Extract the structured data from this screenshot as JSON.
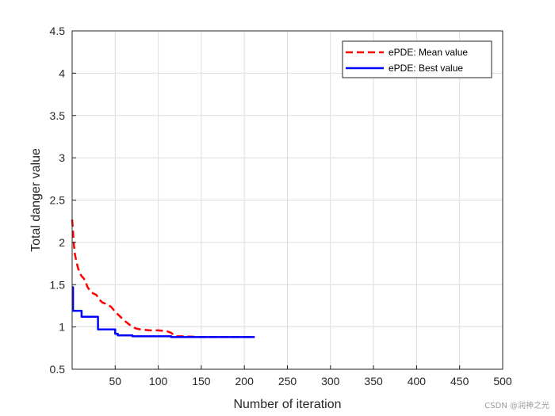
{
  "chart_data": {
    "type": "line",
    "xlabel": "Number of iteration",
    "ylabel": "Total danger value",
    "xlim": [
      0,
      500
    ],
    "ylim": [
      0.5,
      4.5
    ],
    "xticks": [
      50,
      100,
      150,
      200,
      250,
      300,
      350,
      400,
      450,
      500
    ],
    "yticks": [
      0.5,
      1,
      1.5,
      2,
      2.5,
      3,
      3.5,
      4,
      4.5
    ],
    "xtick_labels": [
      "50",
      "100",
      "150",
      "200",
      "250",
      "300",
      "350",
      "400",
      "450",
      "500"
    ],
    "ytick_labels": [
      "0.5",
      "1",
      "1.5",
      "2",
      "2.5",
      "3",
      "3.5",
      "4",
      "4.5"
    ],
    "grid": true,
    "legend_position": "top-right",
    "series": [
      {
        "name": "ePDE: Mean value",
        "color": "#ff0000",
        "style": "dashed",
        "x": [
          0,
          1,
          2,
          3,
          5,
          7,
          9,
          11,
          13,
          15,
          18,
          22,
          28,
          32,
          35,
          40,
          45,
          50,
          55,
          60,
          65,
          70,
          75,
          80,
          90,
          100,
          110,
          115,
          120,
          130,
          150,
          170,
          190,
          212
        ],
        "y": [
          2.27,
          2.12,
          1.97,
          1.87,
          1.77,
          1.69,
          1.64,
          1.6,
          1.58,
          1.55,
          1.47,
          1.41,
          1.38,
          1.32,
          1.29,
          1.27,
          1.24,
          1.18,
          1.13,
          1.08,
          1.04,
          1.0,
          0.98,
          0.97,
          0.96,
          0.96,
          0.95,
          0.93,
          0.89,
          0.89,
          0.88,
          0.88,
          0.88,
          0.88
        ]
      },
      {
        "name": "ePDE: Best value",
        "color": "#0000ff",
        "style": "solid",
        "x": [
          0,
          1,
          1,
          11,
          11,
          30,
          30,
          50,
          50,
          53,
          53,
          70,
          70,
          115,
          115,
          212
        ],
        "y": [
          1.47,
          1.47,
          1.19,
          1.19,
          1.12,
          1.12,
          0.97,
          0.97,
          0.92,
          0.92,
          0.9,
          0.9,
          0.89,
          0.89,
          0.88,
          0.88
        ]
      }
    ]
  },
  "watermark": "CSDN @润神之光"
}
